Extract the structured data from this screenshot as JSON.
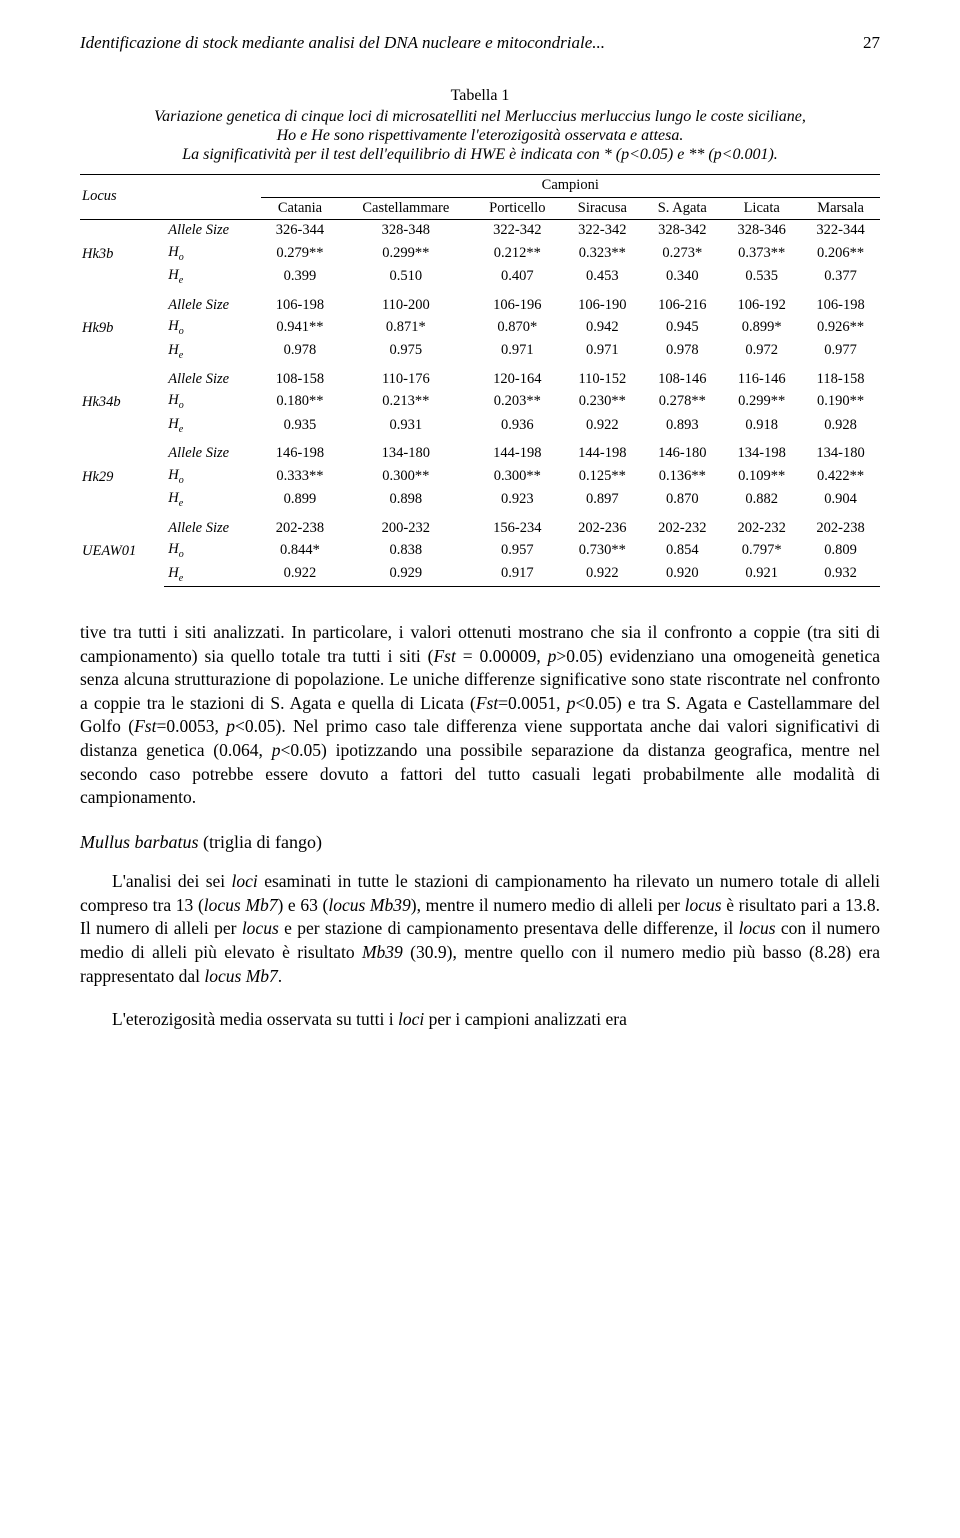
{
  "running_head": "Identificazione di stock mediante analisi del DNA nucleare e mitocondriale...",
  "page_number": "27",
  "table": {
    "title": "Tabella 1",
    "desc_line1": "Variazione genetica di cinque loci di microsatelliti nel Merluccius merluccius lungo le coste siciliane,",
    "desc_line2": "Ho e He sono rispettivamente l'eterozigosità osservata e attesa.",
    "desc_line3": "La significatività per il test dell'equilibrio di HWE è indicata con * (p<0.05) e ** (p<0.001).",
    "header_locus": "Locus",
    "header_campioni": "Campioni",
    "columns": [
      "Catania",
      "Castellammare",
      "Porticello",
      "Siracusa",
      "S. Agata",
      "Licata",
      "Marsala"
    ],
    "row_attrs": [
      "Allele Size",
      "H",
      "H"
    ],
    "row_sub1": "o",
    "row_sub2": "e",
    "data": {
      "Hk3b": [
        [
          "326-344",
          "328-348",
          "322-342",
          "322-342",
          "328-342",
          "328-346",
          "322-344"
        ],
        [
          "0.279**",
          "0.299**",
          "0.212**",
          "0.323**",
          "0.273*",
          "0.373**",
          "0.206**"
        ],
        [
          "0.399",
          "0.510",
          "0.407",
          "0.453",
          "0.340",
          "0.535",
          "0.377"
        ]
      ],
      "Hk9b": [
        [
          "106-198",
          "110-200",
          "106-196",
          "106-190",
          "106-216",
          "106-192",
          "106-198"
        ],
        [
          "0.941**",
          "0.871*",
          "0.870*",
          "0.942",
          "0.945",
          "0.899*",
          "0.926**"
        ],
        [
          "0.978",
          "0.975",
          "0.971",
          "0.971",
          "0.978",
          "0.972",
          "0.977"
        ]
      ],
      "Hk34b": [
        [
          "108-158",
          "110-176",
          "120-164",
          "110-152",
          "108-146",
          "116-146",
          "118-158"
        ],
        [
          "0.180**",
          "0.213**",
          "0.203**",
          "0.230**",
          "0.278**",
          "0.299**",
          "0.190**"
        ],
        [
          "0.935",
          "0.931",
          "0.936",
          "0.922",
          "0.893",
          "0.918",
          "0.928"
        ]
      ],
      "Hk29": [
        [
          "146-198",
          "134-180",
          "144-198",
          "144-198",
          "146-180",
          "134-198",
          "134-180"
        ],
        [
          "0.333**",
          "0.300**",
          "0.300**",
          "0.125**",
          "0.136**",
          "0.109**",
          "0.422**"
        ],
        [
          "0.899",
          "0.898",
          "0.923",
          "0.897",
          "0.870",
          "0.882",
          "0.904"
        ]
      ],
      "UEAW01": [
        [
          "202-238",
          "200-232",
          "156-234",
          "202-236",
          "202-232",
          "202-232",
          "202-238"
        ],
        [
          "0.844*",
          "0.838",
          "0.957",
          "0.730**",
          "0.854",
          "0.797*",
          "0.809"
        ],
        [
          "0.922",
          "0.929",
          "0.917",
          "0.922",
          "0.920",
          "0.921",
          "0.932"
        ]
      ]
    },
    "locus_order": [
      "Hk3b",
      "Hk9b",
      "Hk34b",
      "Hk29",
      "UEAW01"
    ]
  },
  "para1_prefix": "tive tra tutti i siti analizzati. In particolare, i valori ottenuti mostrano che sia il confronto a coppie (tra siti di campionamento) sia quello totale tra tutti i siti (",
  "para1_i1": "Fst",
  "para1_mid1": " = 0.00009, ",
  "para1_i2": "p",
  "para1_mid2": ">0.05) evidenziano una omogeneità genetica senza alcuna strutturazione di popolazione. Le uniche differenze significative sono state riscontrate nel confronto a coppie tra le stazioni di S. Agata e quella di Licata (",
  "para1_i3": "Fst",
  "para1_mid3": "=0.0051, ",
  "para1_i4": "p",
  "para1_mid4": "<0.05) e tra S. Agata e Castellammare del Golfo (",
  "para1_i5": "Fst",
  "para1_mid5": "=0.0053, ",
  "para1_i6": "p",
  "para1_mid6": "<0.05). Nel primo caso tale differenza viene supportata anche dai valori significativi di distanza genetica (0.064, ",
  "para1_i7": "p",
  "para1_suffix": "<0.05) ipotizzando una possibile separazione da distanza geografica, mentre nel secondo caso potrebbe essere dovuto a fattori del tutto casuali legati probabilmente alle modalità di campionamento.",
  "section_prefix": "Mullus barbatus",
  "section_suffix": " (triglia di fango)",
  "para2_a": "L'analisi dei sei ",
  "para2_i1": "loci",
  "para2_b": " esaminati in tutte le stazioni di campionamento ha rilevato un numero totale di alleli compreso tra 13 (",
  "para2_i2": "locus Mb7",
  "para2_c": ") e 63 (",
  "para2_i3": "locus Mb39",
  "para2_d": "), mentre il numero medio di alleli per ",
  "para2_i4": "locus",
  "para2_e": " è risultato pari a 13.8. Il numero di alleli per ",
  "para2_i5": "locus",
  "para2_f": " e per stazione di campionamento presentava delle differenze, il ",
  "para2_i6": "locus",
  "para2_g": " con il numero medio di alleli più elevato è risultato ",
  "para2_i7": "Mb39",
  "para2_h": " (30.9), mentre quello con il numero medio più basso (8.28) era rappresentato dal ",
  "para2_i8": "locus Mb7",
  "para2_i": ".",
  "para3_a": "L'eterozigosità media osservata su tutti i ",
  "para3_i1": "loci",
  "para3_b": " per i campioni analizzati era"
}
